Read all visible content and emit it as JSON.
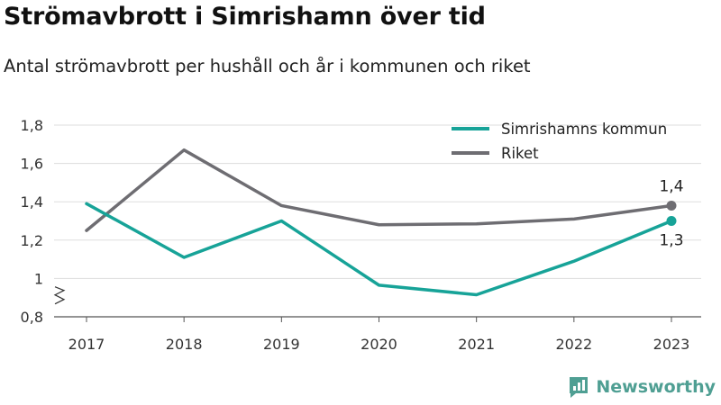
{
  "title": "Strömavbrott i Simrishamn över tid",
  "subtitle": "Antal strömavbrott per hushåll och år i kommunen och riket",
  "brand": {
    "name": "Newsworthy",
    "icon": "newsworthy-logo-icon"
  },
  "chart_data": {
    "type": "line",
    "title": "Strömavbrott i Simrishamn över tid",
    "subtitle": "Antal strömavbrott per hushåll och år i kommunen och riket",
    "xlabel": "",
    "ylabel": "",
    "x": [
      "2017",
      "2018",
      "2019",
      "2020",
      "2021",
      "2022",
      "2023"
    ],
    "ylim": [
      0.8,
      1.8
    ],
    "yticks": [
      0.8,
      1,
      1.2,
      1.4,
      1.6,
      1.8
    ],
    "ytick_labels": [
      "0,8",
      "1",
      "1,2",
      "1,4",
      "1,6",
      "1,8"
    ],
    "axis_break": true,
    "grid": true,
    "legend_position": "top-right",
    "series": [
      {
        "name": "Simrishamns kommun",
        "color": "#17a398",
        "values": [
          1.39,
          1.11,
          1.3,
          0.965,
          0.915,
          1.09,
          1.3
        ],
        "end_label": "1,3"
      },
      {
        "name": "Riket",
        "color": "#6e6d72",
        "values": [
          1.25,
          1.67,
          1.38,
          1.28,
          1.285,
          1.31,
          1.38
        ],
        "end_label": "1,4"
      }
    ]
  }
}
